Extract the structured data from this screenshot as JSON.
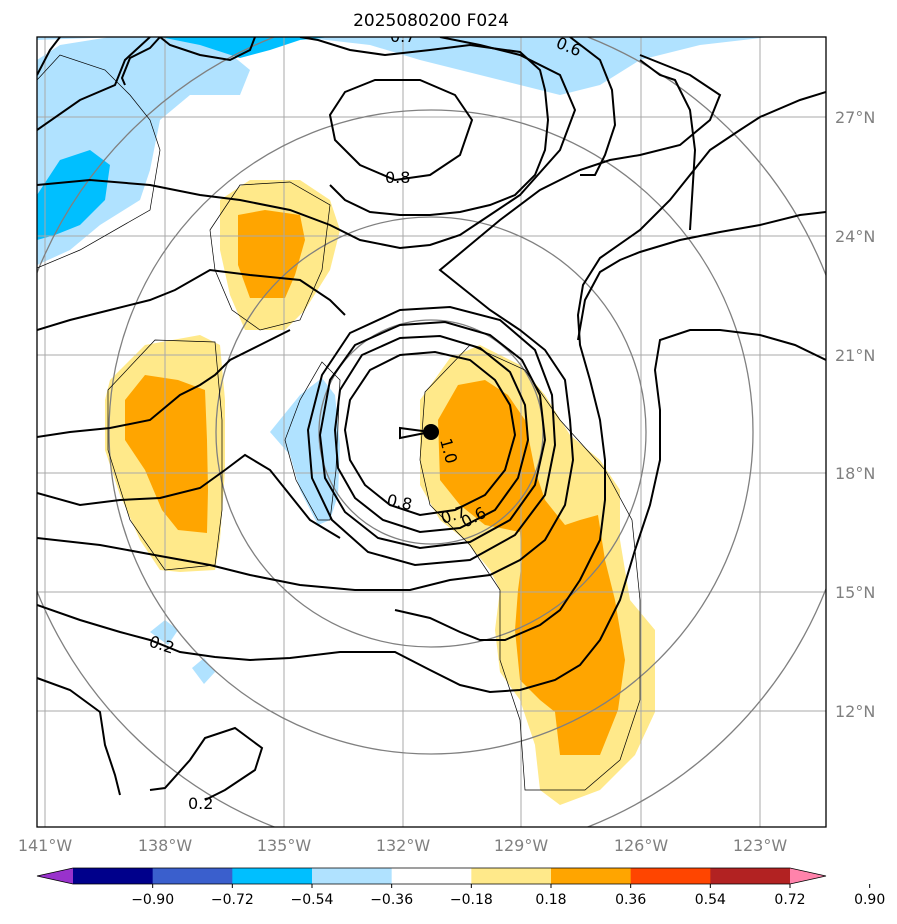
{
  "title": "2025080200 F024",
  "lon_labels": [
    "141°W",
    "138°W",
    "135°W",
    "132°W",
    "129°W",
    "126°W",
    "123°W"
  ],
  "lat_labels": [
    "27°N",
    "24°N",
    "21°N",
    "18°N",
    "15°N",
    "12°N"
  ],
  "colorbar": {
    "ticks": [
      "−0.90",
      "−0.72",
      "−0.54",
      "−0.36",
      "−0.18",
      "0.18",
      "0.36",
      "0.54",
      "0.72",
      "0.90"
    ],
    "colors": [
      "#9932cc",
      "#00008b",
      "#3a5fcd",
      "#00bfff",
      "#b0e2ff",
      "#ffffff",
      "#ffe98a",
      "#ffa500",
      "#ff4500",
      "#b22222",
      "#ff83ab"
    ]
  },
  "fill_colors": {
    "light_blue": "#b0e2ff",
    "blue": "#00bfff",
    "light_yellow": "#ffe98a",
    "orange": "#ffa500"
  },
  "contour_labels": [
    "0.8",
    "0.8",
    "0.7",
    "0.6",
    "0.6",
    "0.7",
    "1.0",
    "0.2",
    "0.2"
  ],
  "storm_marker": "storm-center-dot"
}
